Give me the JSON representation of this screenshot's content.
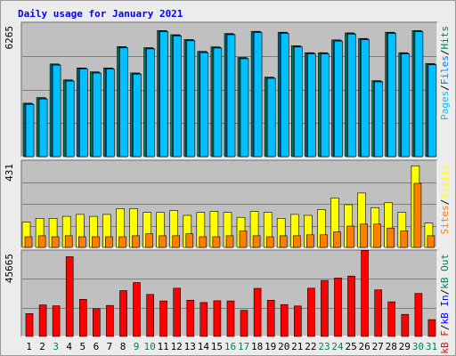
{
  "title": "Daily usage for January 2021",
  "colors": {
    "title": "#0000ff",
    "hits": "#00805c",
    "files": "#0080ff",
    "pages": "#00c0ff",
    "visits": "#ffff00",
    "sites": "#ff8000",
    "kb_in": "#0000ff",
    "kb_out": "#00805c",
    "kb_f": "#ff0000",
    "weekend_label": "#00805c",
    "weekday_label": "#000000"
  },
  "chart_data": [
    {
      "type": "bar",
      "panel": "hits-files-pages",
      "ymax_label": "6265",
      "ymax": 6265,
      "legend": [
        {
          "name": "Pages",
          "color": "#00c0ff"
        },
        {
          "name": "Files",
          "color": "#0080ff"
        },
        {
          "name": "Hits",
          "color": "#00805c"
        }
      ],
      "legend_separator": "/",
      "categories": [
        "1",
        "2",
        "3",
        "4",
        "5",
        "6",
        "7",
        "8",
        "9",
        "10",
        "11",
        "12",
        "13",
        "14",
        "15",
        "16",
        "17",
        "18",
        "19",
        "20",
        "21",
        "22",
        "23",
        "24",
        "25",
        "26",
        "27",
        "28",
        "29",
        "30",
        "31"
      ],
      "series": [
        {
          "name": "Hits",
          "values": [
            2560,
            2830,
            4440,
            3680,
            4250,
            4060,
            4250,
            5270,
            4010,
            5220,
            6040,
            5840,
            5610,
            5040,
            5260,
            5900,
            4750,
            6000,
            3810,
            5960,
            5310,
            4980,
            4980,
            5590,
            5930,
            5660,
            3640,
            5960,
            4980,
            6040,
            4460
          ]
        },
        {
          "name": "Files",
          "values": [
            2530,
            2790,
            4410,
            3650,
            4230,
            4030,
            4220,
            5240,
            3980,
            5190,
            6010,
            5810,
            5580,
            5010,
            5230,
            5870,
            4720,
            5970,
            3780,
            5930,
            5280,
            4950,
            4950,
            5560,
            5900,
            5630,
            3610,
            5930,
            4950,
            6010,
            4430
          ]
        },
        {
          "name": "Pages",
          "values": [
            2500,
            2760,
            4380,
            3620,
            4200,
            4000,
            4190,
            5210,
            3950,
            5160,
            5980,
            5780,
            5550,
            4980,
            5200,
            5840,
            4690,
            5940,
            3750,
            5900,
            5250,
            4920,
            4920,
            5530,
            5870,
            5600,
            3580,
            5900,
            4920,
            5980,
            4400
          ]
        }
      ]
    },
    {
      "type": "bar",
      "panel": "visits-sites",
      "ymax_label": "431",
      "ymax": 431,
      "legend": [
        {
          "name": "Sites",
          "color": "#ff8000"
        },
        {
          "name": "Visits",
          "color": "#ffff00"
        }
      ],
      "legend_separator": "/",
      "categories": [
        "1",
        "2",
        "3",
        "4",
        "5",
        "6",
        "7",
        "8",
        "9",
        "10",
        "11",
        "12",
        "13",
        "14",
        "15",
        "16",
        "17",
        "18",
        "19",
        "20",
        "21",
        "22",
        "23",
        "24",
        "25",
        "26",
        "27",
        "28",
        "29",
        "30",
        "31"
      ],
      "series": [
        {
          "name": "Visits",
          "values": [
            130,
            150,
            150,
            160,
            170,
            160,
            170,
            200,
            200,
            180,
            180,
            190,
            165,
            180,
            185,
            180,
            155,
            185,
            180,
            150,
            170,
            165,
            195,
            255,
            220,
            280,
            205,
            230,
            180,
            420,
            125
          ]
        },
        {
          "name": "Sites",
          "values": [
            55,
            60,
            55,
            60,
            55,
            55,
            55,
            55,
            60,
            70,
            60,
            60,
            70,
            55,
            55,
            60,
            85,
            60,
            55,
            60,
            60,
            65,
            65,
            80,
            110,
            120,
            120,
            100,
            85,
            330,
            60
          ]
        }
      ]
    },
    {
      "type": "bar",
      "panel": "kbf",
      "ymax_label": "45665",
      "ymax": 45665,
      "legend": [
        {
          "name": "kB F",
          "color": "#ff0000"
        },
        {
          "name": "kB In",
          "color": "#0000ff"
        },
        {
          "name": "kB Out",
          "color": "#00805c"
        }
      ],
      "legend_separator": "/",
      "categories": [
        "1",
        "2",
        "3",
        "4",
        "5",
        "6",
        "7",
        "8",
        "9",
        "10",
        "11",
        "12",
        "13",
        "14",
        "15",
        "16",
        "17",
        "18",
        "19",
        "20",
        "21",
        "22",
        "23",
        "24",
        "25",
        "26",
        "27",
        "28",
        "29",
        "30",
        "31"
      ],
      "series": [
        {
          "name": "kB F",
          "values": [
            12600,
            17400,
            16900,
            44000,
            20500,
            15300,
            17100,
            25300,
            29700,
            23200,
            19600,
            26600,
            20000,
            18700,
            19700,
            19600,
            14400,
            26500,
            20000,
            17600,
            16800,
            26600,
            30900,
            32200,
            33300,
            47500,
            25700,
            19100,
            12200,
            23700,
            9300
          ]
        }
      ]
    }
  ],
  "x_labels": [
    {
      "label": "1",
      "weekend": false
    },
    {
      "label": "2",
      "weekend": false
    },
    {
      "label": "3",
      "weekend": true
    },
    {
      "label": "4",
      "weekend": false
    },
    {
      "label": "5",
      "weekend": false
    },
    {
      "label": "6",
      "weekend": false
    },
    {
      "label": "7",
      "weekend": false
    },
    {
      "label": "8",
      "weekend": false
    },
    {
      "label": "9",
      "weekend": true
    },
    {
      "label": "10",
      "weekend": true
    },
    {
      "label": "11",
      "weekend": false
    },
    {
      "label": "12",
      "weekend": false
    },
    {
      "label": "13",
      "weekend": false
    },
    {
      "label": "14",
      "weekend": false
    },
    {
      "label": "15",
      "weekend": false
    },
    {
      "label": "16",
      "weekend": true
    },
    {
      "label": "17",
      "weekend": true
    },
    {
      "label": "18",
      "weekend": false
    },
    {
      "label": "19",
      "weekend": false
    },
    {
      "label": "20",
      "weekend": false
    },
    {
      "label": "21",
      "weekend": false
    },
    {
      "label": "22",
      "weekend": false
    },
    {
      "label": "23",
      "weekend": true
    },
    {
      "label": "24",
      "weekend": true
    },
    {
      "label": "25",
      "weekend": false
    },
    {
      "label": "26",
      "weekend": false
    },
    {
      "label": "27",
      "weekend": false
    },
    {
      "label": "28",
      "weekend": false
    },
    {
      "label": "29",
      "weekend": false
    },
    {
      "label": "30",
      "weekend": true
    },
    {
      "label": "31",
      "weekend": true
    }
  ]
}
